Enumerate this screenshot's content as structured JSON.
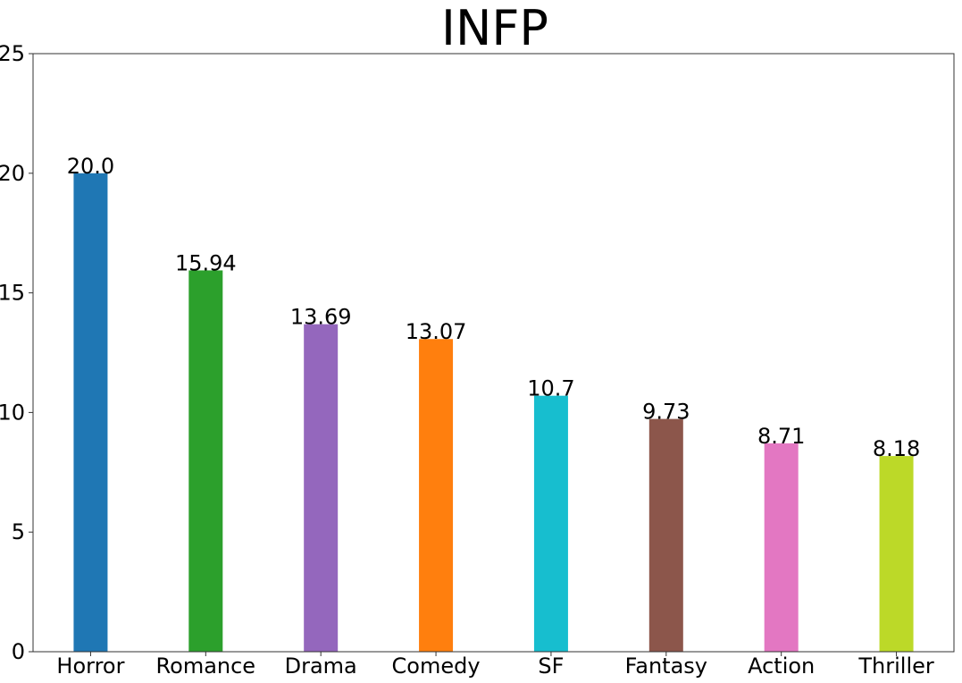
{
  "chart_data": {
    "type": "bar",
    "title": "INFP",
    "xlabel": "",
    "ylabel": "",
    "categories": [
      "Horror",
      "Romance",
      "Drama",
      "Comedy",
      "SF",
      "Fantasy",
      "Action",
      "Thriller"
    ],
    "values": [
      20.0,
      15.94,
      13.69,
      13.07,
      10.7,
      9.73,
      8.71,
      8.18
    ],
    "value_labels": [
      "20.0",
      "15.94",
      "13.69",
      "13.07",
      "10.7",
      "9.73",
      "8.71",
      "8.18"
    ],
    "colors": [
      "#1f77b4",
      "#2ca02c",
      "#9467bd",
      "#ff7f0e",
      "#17becf",
      "#8c564b",
      "#e377c2",
      "#bcd928"
    ],
    "ylim": [
      0,
      25
    ],
    "yticks": [
      0,
      5,
      10,
      15,
      20,
      25
    ],
    "grid": false,
    "legend": "none"
  }
}
